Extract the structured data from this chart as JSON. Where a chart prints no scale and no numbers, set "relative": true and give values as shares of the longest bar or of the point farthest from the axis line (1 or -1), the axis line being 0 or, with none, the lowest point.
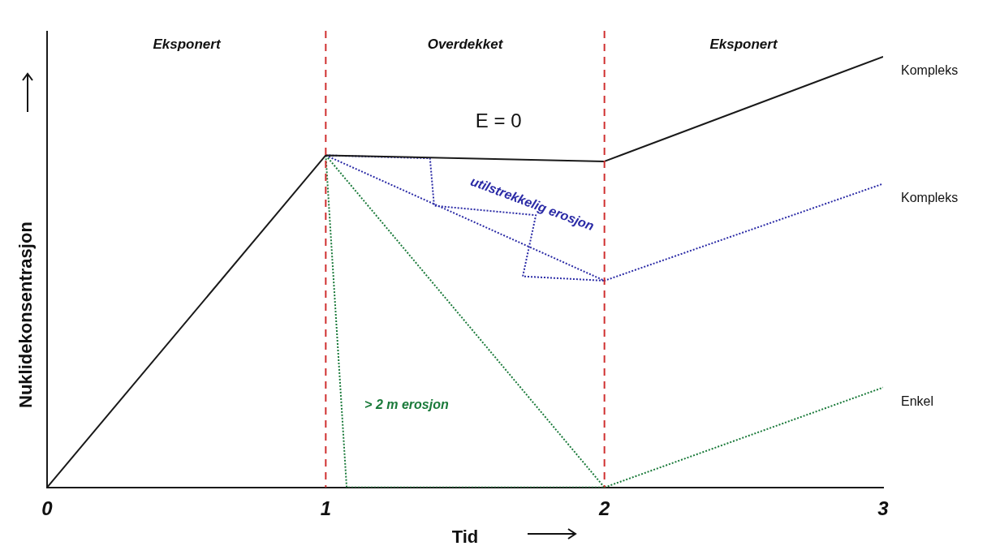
{
  "chart_data": {
    "type": "line",
    "relative": true,
    "xlabel": "Tid",
    "ylabel": "Nuklidekonsentrasjon",
    "xlim": [
      0,
      3
    ],
    "xticks": [
      0,
      1,
      2,
      3
    ],
    "grid": false,
    "legend": false,
    "series": [
      {
        "name": "Kompleks",
        "color": "#1a1a1a",
        "line_style": "solid",
        "x": [
          0,
          1,
          2,
          3
        ],
        "values": [
          0,
          0.771,
          0.757,
          1.0
        ]
      },
      {
        "name": "Kompleks",
        "color": "#2b2ba6",
        "line_style": "dotted",
        "x": [
          1,
          2,
          3
        ],
        "values": [
          0.771,
          0.48,
          0.705
        ]
      },
      {
        "color": "#2b2ba6",
        "line_style": "dotted",
        "x": [
          1,
          1.374,
          1.389,
          1.754,
          1.707,
          2
        ],
        "values": [
          0.771,
          0.764,
          0.654,
          0.632,
          0.49,
          0.48
        ]
      },
      {
        "color": "#1a7a3a",
        "line_style": "dotted",
        "x": [
          1,
          2
        ],
        "values": [
          0.771,
          0
        ]
      },
      {
        "name": "Enkel",
        "color": "#1a7a3a",
        "line_style": "dotted",
        "x": [
          1,
          1.075,
          2,
          3
        ],
        "values": [
          0.771,
          0,
          0,
          0.232
        ]
      }
    ],
    "ref_lines": [
      {
        "axis": "x",
        "value": 1,
        "color": "#d03030",
        "line_style": "dashed"
      },
      {
        "axis": "x",
        "value": 2,
        "color": "#d03030",
        "line_style": "dashed"
      }
    ],
    "annotations": [
      "Eksponert",
      "Overdekket",
      "Eksponert",
      "E = 0",
      "utilstrekkelig erosjon",
      "> 2 m erosjon"
    ]
  }
}
